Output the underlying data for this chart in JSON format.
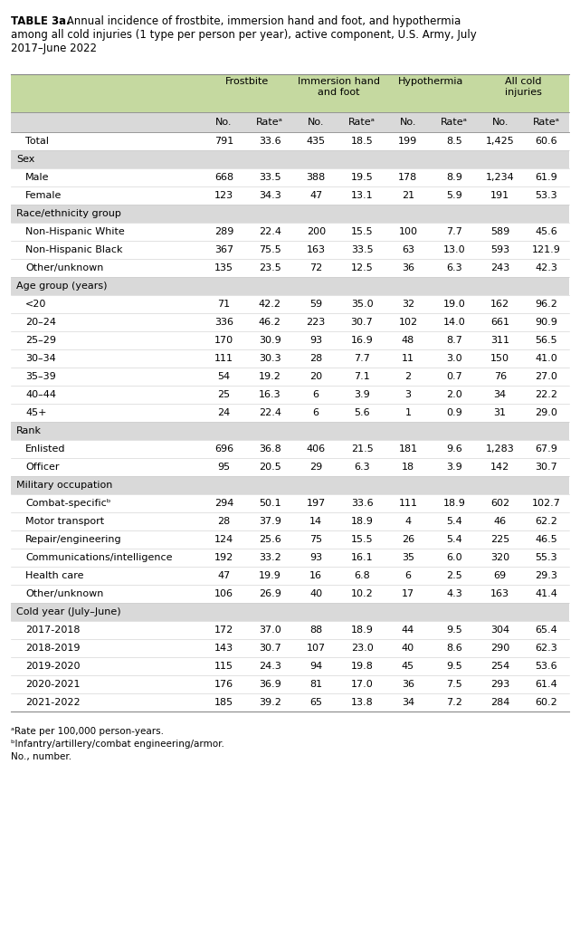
{
  "title_bold": "TABLE 3a.",
  "title_rest": " Annual incidence of frostbite, immersion hand and foot, and hypothermia\namong all cold injuries (1 type per person per year), active component, U.S. Army, July\n2017–June 2022",
  "header_bg": "#c5d9a0",
  "subheader_bg": "#d9d9d9",
  "white_bg": "#ffffff",
  "rows": [
    {
      "label": "Total",
      "type": "total",
      "indent": false,
      "values": [
        "791",
        "33.6",
        "435",
        "18.5",
        "199",
        "8.5",
        "1,425",
        "60.6"
      ]
    },
    {
      "label": "Sex",
      "type": "section",
      "indent": false,
      "values": []
    },
    {
      "label": "Male",
      "type": "data",
      "indent": true,
      "values": [
        "668",
        "33.5",
        "388",
        "19.5",
        "178",
        "8.9",
        "1,234",
        "61.9"
      ]
    },
    {
      "label": "Female",
      "type": "data",
      "indent": true,
      "values": [
        "123",
        "34.3",
        "47",
        "13.1",
        "21",
        "5.9",
        "191",
        "53.3"
      ]
    },
    {
      "label": "Race/ethnicity group",
      "type": "section",
      "indent": false,
      "values": []
    },
    {
      "label": "Non-Hispanic White",
      "type": "data",
      "indent": true,
      "values": [
        "289",
        "22.4",
        "200",
        "15.5",
        "100",
        "7.7",
        "589",
        "45.6"
      ]
    },
    {
      "label": "Non-Hispanic Black",
      "type": "data",
      "indent": true,
      "values": [
        "367",
        "75.5",
        "163",
        "33.5",
        "63",
        "13.0",
        "593",
        "121.9"
      ]
    },
    {
      "label": "Other/unknown",
      "type": "data",
      "indent": true,
      "values": [
        "135",
        "23.5",
        "72",
        "12.5",
        "36",
        "6.3",
        "243",
        "42.3"
      ]
    },
    {
      "label": "Age group (years)",
      "type": "section",
      "indent": false,
      "values": []
    },
    {
      "label": "<20",
      "type": "data",
      "indent": true,
      "values": [
        "71",
        "42.2",
        "59",
        "35.0",
        "32",
        "19.0",
        "162",
        "96.2"
      ]
    },
    {
      "label": "20–24",
      "type": "data",
      "indent": true,
      "values": [
        "336",
        "46.2",
        "223",
        "30.7",
        "102",
        "14.0",
        "661",
        "90.9"
      ]
    },
    {
      "label": "25–29",
      "type": "data",
      "indent": true,
      "values": [
        "170",
        "30.9",
        "93",
        "16.9",
        "48",
        "8.7",
        "311",
        "56.5"
      ]
    },
    {
      "label": "30–34",
      "type": "data",
      "indent": true,
      "values": [
        "111",
        "30.3",
        "28",
        "7.7",
        "11",
        "3.0",
        "150",
        "41.0"
      ]
    },
    {
      "label": "35–39",
      "type": "data",
      "indent": true,
      "values": [
        "54",
        "19.2",
        "20",
        "7.1",
        "2",
        "0.7",
        "76",
        "27.0"
      ]
    },
    {
      "label": "40–44",
      "type": "data",
      "indent": true,
      "values": [
        "25",
        "16.3",
        "6",
        "3.9",
        "3",
        "2.0",
        "34",
        "22.2"
      ]
    },
    {
      "label": "45+",
      "type": "data",
      "indent": true,
      "values": [
        "24",
        "22.4",
        "6",
        "5.6",
        "1",
        "0.9",
        "31",
        "29.0"
      ]
    },
    {
      "label": "Rank",
      "type": "section",
      "indent": false,
      "values": []
    },
    {
      "label": "Enlisted",
      "type": "data",
      "indent": true,
      "values": [
        "696",
        "36.8",
        "406",
        "21.5",
        "181",
        "9.6",
        "1,283",
        "67.9"
      ]
    },
    {
      "label": "Officer",
      "type": "data",
      "indent": true,
      "values": [
        "95",
        "20.5",
        "29",
        "6.3",
        "18",
        "3.9",
        "142",
        "30.7"
      ]
    },
    {
      "label": "Military occupation",
      "type": "section",
      "indent": false,
      "values": []
    },
    {
      "label": "Combat-specificᵇ",
      "type": "data",
      "indent": true,
      "values": [
        "294",
        "50.1",
        "197",
        "33.6",
        "111",
        "18.9",
        "602",
        "102.7"
      ]
    },
    {
      "label": "Motor transport",
      "type": "data",
      "indent": true,
      "values": [
        "28",
        "37.9",
        "14",
        "18.9",
        "4",
        "5.4",
        "46",
        "62.2"
      ]
    },
    {
      "label": "Repair/engineering",
      "type": "data",
      "indent": true,
      "values": [
        "124",
        "25.6",
        "75",
        "15.5",
        "26",
        "5.4",
        "225",
        "46.5"
      ]
    },
    {
      "label": "Communications/intelligence",
      "type": "data",
      "indent": true,
      "values": [
        "192",
        "33.2",
        "93",
        "16.1",
        "35",
        "6.0",
        "320",
        "55.3"
      ]
    },
    {
      "label": "Health care",
      "type": "data",
      "indent": true,
      "values": [
        "47",
        "19.9",
        "16",
        "6.8",
        "6",
        "2.5",
        "69",
        "29.3"
      ]
    },
    {
      "label": "Other/unknown",
      "type": "data",
      "indent": true,
      "values": [
        "106",
        "26.9",
        "40",
        "10.2",
        "17",
        "4.3",
        "163",
        "41.4"
      ]
    },
    {
      "label": "Cold year (July–June)",
      "type": "section",
      "indent": false,
      "values": []
    },
    {
      "label": "2017-2018",
      "type": "data",
      "indent": true,
      "values": [
        "172",
        "37.0",
        "88",
        "18.9",
        "44",
        "9.5",
        "304",
        "65.4"
      ]
    },
    {
      "label": "2018-2019",
      "type": "data",
      "indent": true,
      "values": [
        "143",
        "30.7",
        "107",
        "23.0",
        "40",
        "8.6",
        "290",
        "62.3"
      ]
    },
    {
      "label": "2019-2020",
      "type": "data",
      "indent": true,
      "values": [
        "115",
        "24.3",
        "94",
        "19.8",
        "45",
        "9.5",
        "254",
        "53.6"
      ]
    },
    {
      "label": "2020-2021",
      "type": "data",
      "indent": true,
      "values": [
        "176",
        "36.9",
        "81",
        "17.0",
        "36",
        "7.5",
        "293",
        "61.4"
      ]
    },
    {
      "label": "2021-2022",
      "type": "data",
      "indent": true,
      "values": [
        "185",
        "39.2",
        "65",
        "13.8",
        "34",
        "7.2",
        "284",
        "60.2"
      ]
    }
  ],
  "footnotes": [
    "ᵃRate per 100,000 person-years.",
    "ᵇInfantry/artillery/combat engineering/armor.",
    "No., number."
  ],
  "font_size": 8.0,
  "title_font_size": 8.5,
  "footnote_font_size": 7.5
}
